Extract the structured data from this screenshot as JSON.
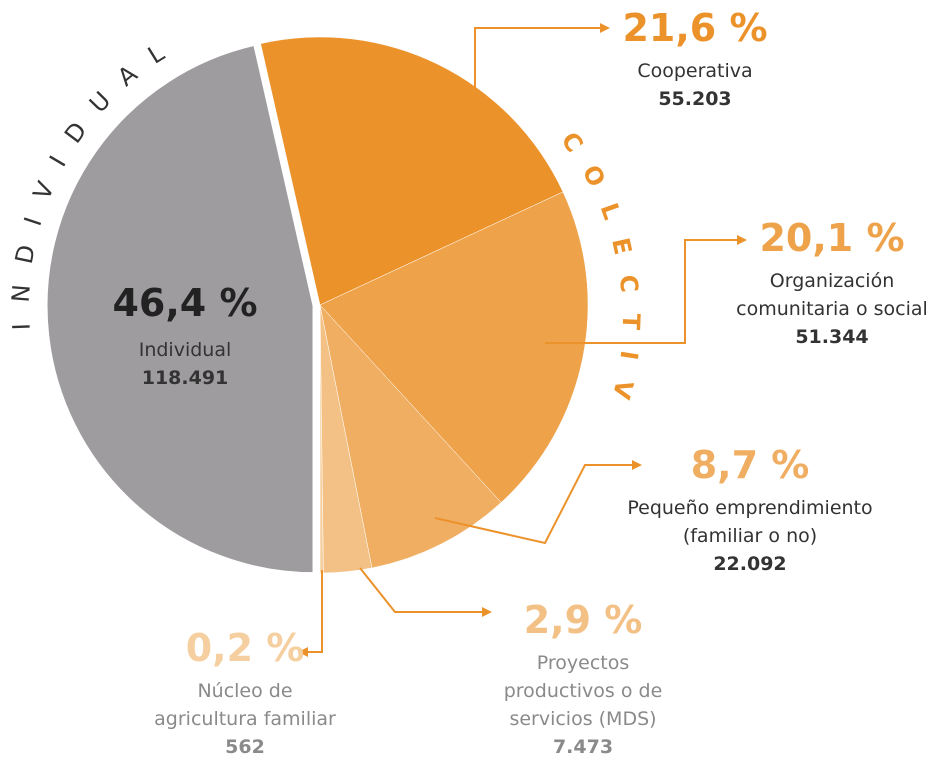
{
  "chart_data": {
    "type": "pie",
    "categories": [
      "Individual",
      "Cooperativa",
      "Organización comunitaria o social",
      "Pequeño emprendimiento (familiar o no)",
      "Proyectos productivos o de servicios (MDS)",
      "Núcleo de agricultura familiar"
    ],
    "values": [
      46.4,
      21.6,
      20.1,
      8.7,
      2.9,
      0.2
    ],
    "value_labels": [
      "46,4 %",
      "21,6 %",
      "20,1 %",
      "8,7 %",
      "2,9 %",
      "0,2 %"
    ],
    "count_labels": [
      "118.491",
      "55.203",
      "51.344",
      "22.092",
      "7.473",
      "562"
    ],
    "colors": [
      "#9e9c9f",
      "#ec922b",
      "#eea24a",
      "#f0ae62",
      "#f3c185",
      "#f5cf9f"
    ],
    "groups": [
      "INDIVIDUAL",
      "COLECTIVA"
    ]
  }
}
